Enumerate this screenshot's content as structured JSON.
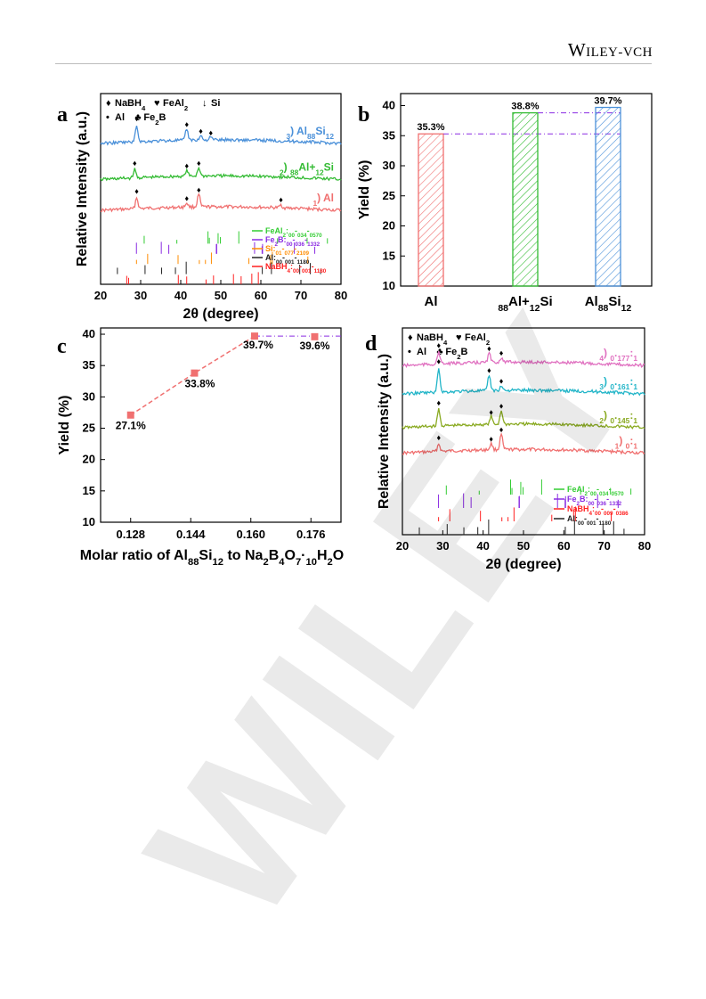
{
  "publisher": {
    "main": "Wiley",
    "suffix": "-VCH"
  },
  "watermark": "WILEY",
  "chart_data": [
    {
      "panel": "a",
      "type": "line",
      "xlabel": "2θ (degree)",
      "ylabel": "Relative Intensity (a.u.)",
      "xlim": [
        20,
        80
      ],
      "xticks": [
        "20",
        "30",
        "40",
        "50",
        "60",
        "70",
        "80"
      ],
      "legend_markers": [
        {
          "symbol": "♦",
          "label": "NaBH4"
        },
        {
          "symbol": "♥",
          "label": "FeAl2"
        },
        {
          "symbol": "↓",
          "label": "Si"
        },
        {
          "symbol": "•",
          "label": "Al"
        },
        {
          "symbol": "♣",
          "label": "Fe2B"
        }
      ],
      "series": [
        {
          "name": "1) Al",
          "color": "#f07070",
          "baseline": 0.18,
          "peaks": [
            [
              29,
              0.08
            ],
            [
              41.5,
              0.03
            ],
            [
              44.5,
              0.09
            ],
            [
              65,
              0.02
            ]
          ]
        },
        {
          "name": "2) 88Al+12Si",
          "color": "#33bb33",
          "baseline": 0.42,
          "peaks": [
            [
              28.5,
              0.06
            ],
            [
              41.5,
              0.04
            ],
            [
              44.5,
              0.06
            ]
          ]
        },
        {
          "name": "3) Al88Si12",
          "color": "#4a90d9",
          "baseline": 0.7,
          "peaks": [
            [
              29,
              0.12
            ],
            [
              41.5,
              0.08
            ],
            [
              45,
              0.03
            ],
            [
              47.5,
              0.02
            ]
          ]
        }
      ],
      "references": [
        {
          "label": "FeAl2:00-034-0570",
          "color": "#33cc33"
        },
        {
          "label": "Fe2B:00-036-1332",
          "color": "#8a2be2"
        },
        {
          "label": "Si:01-077-2109",
          "color": "#ff8c00"
        },
        {
          "label": "Al:00-001-1180",
          "color": "#222222"
        },
        {
          "label": "NaBH4:00-001-1180",
          "color": "#ff2020"
        }
      ]
    },
    {
      "panel": "b",
      "type": "bar",
      "ylabel": "Yield (%)",
      "ylim": [
        10,
        42
      ],
      "yticks": [
        "10",
        "15",
        "20",
        "25",
        "30",
        "35",
        "40"
      ],
      "categories": [
        "Al",
        "88Al+12Si",
        "Al88Si12"
      ],
      "values": [
        35.3,
        38.8,
        39.7
      ],
      "data_labels": [
        "35.3%",
        "38.8%",
        "39.7%"
      ],
      "colors": [
        "#f07070",
        "#33bb33",
        "#4a90d9"
      ]
    },
    {
      "panel": "c",
      "type": "line",
      "xlabel": "Molar ratio of Al88Si12 to Na2B4O7·10H2O",
      "ylabel": "Yield (%)",
      "xlim": [
        0.12,
        0.184
      ],
      "ylim": [
        10,
        41
      ],
      "xticks": [
        "0.128",
        "0.144",
        "0.160",
        "0.176"
      ],
      "yticks": [
        "10",
        "15",
        "20",
        "25",
        "30",
        "35",
        "40"
      ],
      "x": [
        0.128,
        0.145,
        0.161,
        0.177
      ],
      "values": [
        27.1,
        33.8,
        39.7,
        39.6
      ],
      "data_labels": [
        "27.1%",
        "33.8%",
        "39.7%",
        "39.6%"
      ],
      "color": "#f07070"
    },
    {
      "panel": "d",
      "type": "line",
      "xlabel": "2θ (degree)",
      "ylabel": "Relative Intensity (a.u.)",
      "xlim": [
        20,
        80
      ],
      "xticks": [
        "20",
        "30",
        "40",
        "50",
        "60",
        "70",
        "80"
      ],
      "legend_markers": [
        {
          "symbol": "♦",
          "label": "NaBH4"
        },
        {
          "symbol": "♥",
          "label": "FeAl2"
        },
        {
          "symbol": "•",
          "label": "Al"
        },
        {
          "symbol": "♣",
          "label": "Fe2B"
        }
      ],
      "series": [
        {
          "name": "1) 0:1",
          "color": "#f07070",
          "baseline": 0.2,
          "peaks": [
            [
              29,
              0.05
            ],
            [
              42,
              0.04
            ],
            [
              44.5,
              0.1
            ]
          ]
        },
        {
          "name": "2) 0.145:1",
          "color": "#8aaa22",
          "baseline": 0.38,
          "peaks": [
            [
              29,
              0.11
            ],
            [
              42,
              0.05
            ],
            [
              44.5,
              0.09
            ]
          ]
        },
        {
          "name": "3) 0.161:1",
          "color": "#22b5c8",
          "baseline": 0.62,
          "peaks": [
            [
              29,
              0.16
            ],
            [
              41.5,
              0.1
            ],
            [
              44.5,
              0.03
            ]
          ]
        },
        {
          "name": "4) 0.177:1",
          "color": "#e070c0",
          "baseline": 0.82,
          "peaks": [
            [
              29,
              0.08
            ],
            [
              41.5,
              0.06
            ],
            [
              44.5,
              0.03
            ]
          ]
        }
      ],
      "references": [
        {
          "label": "FeAl2:00-034-0570",
          "color": "#33cc33"
        },
        {
          "label": "Fe2B:00-036-1332",
          "color": "#8a2be2"
        },
        {
          "label": "NaBH4:00-009-0386",
          "color": "#ff2020"
        },
        {
          "label": "Al:00-001-1180",
          "color": "#222222"
        }
      ]
    }
  ]
}
